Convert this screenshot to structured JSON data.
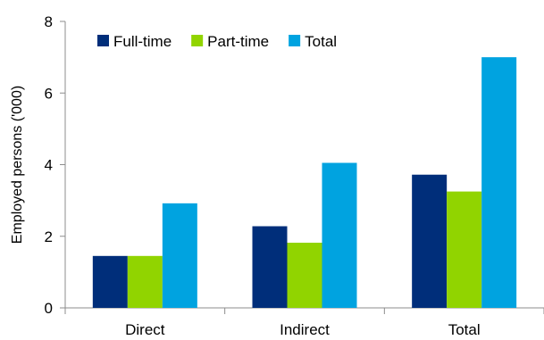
{
  "chart_data": {
    "type": "bar",
    "categories": [
      "Direct",
      "Indirect",
      "Total"
    ],
    "series": [
      {
        "name": "Full-time",
        "color": "#002E7A",
        "values": [
          1.45,
          2.28,
          3.72
        ]
      },
      {
        "name": "Part-time",
        "color": "#91D400",
        "values": [
          1.45,
          1.82,
          3.25
        ]
      },
      {
        "name": "Total",
        "color": "#00A3E0",
        "values": [
          2.92,
          4.05,
          7.0
        ]
      }
    ],
    "ylabel": "Employed persons ('000)",
    "xlabel": "",
    "ylim": [
      0,
      8
    ],
    "yticks": [
      0,
      2,
      4,
      6,
      8
    ],
    "grid": false,
    "legend_position": "top-left"
  }
}
